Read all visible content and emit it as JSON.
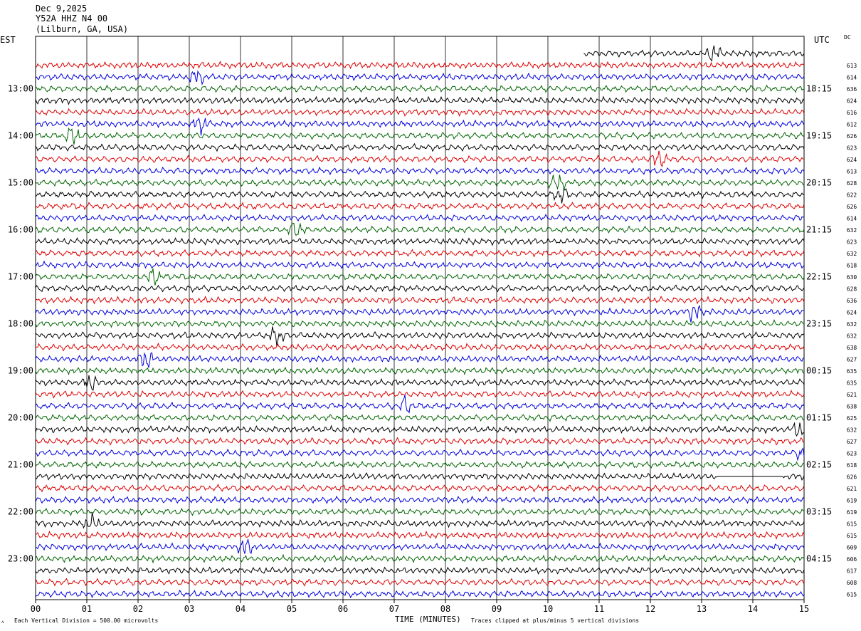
{
  "header": {
    "date": "Dec 9,2025",
    "station": "Y52A HHZ N4 00",
    "location": "(Lilburn, GA, USA)"
  },
  "left_tz": "EST",
  "right_tz": "UTC",
  "dc_label": "DC",
  "footer": {
    "mark": "ᴧ",
    "scale": "Each Vertical Division =  500.00 microvolts",
    "axis_title": "TIME (MINUTES)",
    "clip_note": "Traces clipped at plus/minus 5 vertical divisions"
  },
  "colors": {
    "cycle": [
      "#000000",
      "#dd0000",
      "#0000dd",
      "#006600"
    ],
    "grid": "#000000"
  },
  "chart_data": {
    "type": "helicorder",
    "xlabel": "TIME (MINUTES)",
    "x_ticks": [
      "00",
      "01",
      "02",
      "03",
      "04",
      "05",
      "06",
      "07",
      "08",
      "09",
      "10",
      "11",
      "12",
      "13",
      "14",
      "15"
    ],
    "xlim": [
      0,
      15
    ],
    "minutes_per_line": 15,
    "first_partial_start_minute": 10.7,
    "left_hour_labels": [
      "13:00",
      "14:00",
      "15:00",
      "16:00",
      "17:00",
      "18:00",
      "19:00",
      "20:00",
      "21:00",
      "22:00",
      "23:00"
    ],
    "right_hour_labels": [
      "18:15",
      "19:15",
      "20:15",
      "21:15",
      "22:15",
      "23:15",
      "00:15",
      "01:15",
      "02:15",
      "03:15",
      "04:15"
    ],
    "dc_offsets": [
      "",
      "613",
      "614",
      "636",
      "624",
      "616",
      "612",
      "626",
      "623",
      "624",
      "613",
      "628",
      "622",
      "626",
      "614",
      "632",
      "623",
      "632",
      "618",
      "630",
      "628",
      "636",
      "624",
      "632",
      "632",
      "638",
      "627",
      "635",
      "635",
      "621",
      "638",
      "625",
      "632",
      "627",
      "623",
      "618",
      "626",
      "621",
      "619",
      "619",
      "615",
      "615",
      "609",
      "606",
      "617",
      "608",
      "615"
    ],
    "flat_segments": [
      {
        "trace": 36,
        "from_minute": 13.3,
        "to_minute": 14.6
      }
    ]
  }
}
